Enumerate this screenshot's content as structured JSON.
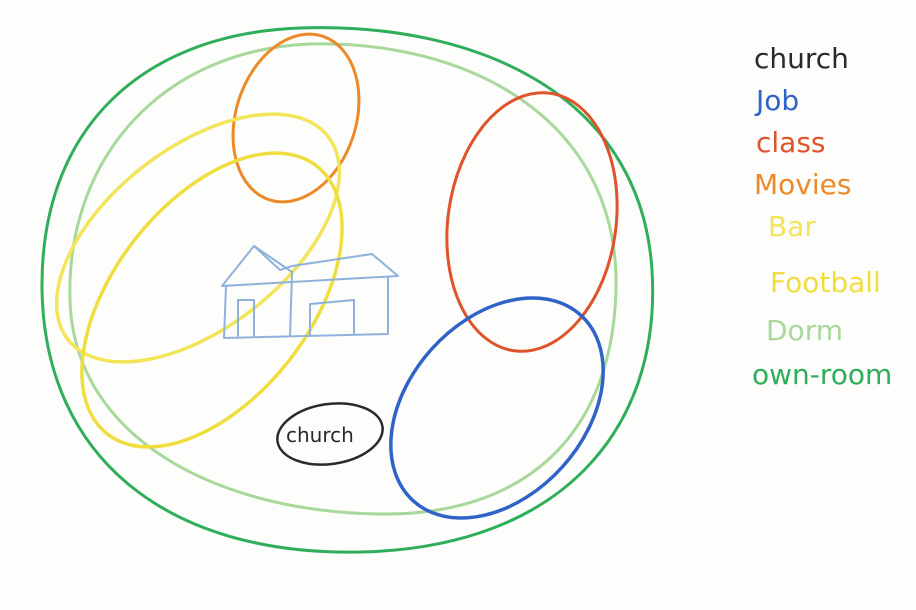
{
  "legend": [
    {
      "label": "church",
      "color": "#2a2a2a"
    },
    {
      "label": "Job",
      "color": "#2f63c8"
    },
    {
      "label": "class",
      "color": "#e0522a"
    },
    {
      "label": "Movies",
      "color": "#ec8a2a"
    },
    {
      "label": "Bar",
      "color": "#f2e55a"
    },
    {
      "label": "Football",
      "color": "#f0de40"
    },
    {
      "label": "Dorm",
      "color": "#a8d89a"
    },
    {
      "label": "own-room",
      "color": "#2fae5a"
    }
  ],
  "diagram": {
    "church_label": "church"
  },
  "colors": {
    "own_room": "#2fae5a",
    "dorm": "#a8d89a",
    "movies": "#ec8a2a",
    "class": "#e0522a",
    "job": "#2f63c8",
    "bar": "#f2e55a",
    "football": "#f0de40",
    "church": "#2a2a2a",
    "house": "#8fb2dc"
  }
}
